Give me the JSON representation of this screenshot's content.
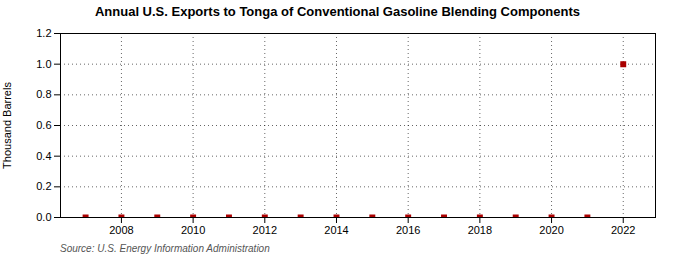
{
  "chart_data": {
    "type": "scatter",
    "title": "Annual U.S. Exports to Tonga of Conventional Gasoline Blending Components",
    "ylabel": "Thousand Barrels",
    "source": "Source: U.S. Energy Information Administration",
    "x": [
      2007,
      2008,
      2009,
      2010,
      2011,
      2012,
      2013,
      2014,
      2015,
      2016,
      2017,
      2018,
      2019,
      2020,
      2021,
      2022
    ],
    "values": [
      0,
      0,
      0,
      0,
      0,
      0,
      0,
      0,
      0,
      0,
      0,
      0,
      0,
      0,
      0,
      1.0
    ],
    "color": "#aa0000",
    "marker": "square",
    "xlim": [
      2006.3,
      2022.9
    ],
    "xticks": [
      2008,
      2010,
      2012,
      2014,
      2016,
      2018,
      2020,
      2022
    ],
    "ylim": [
      0.0,
      1.2
    ],
    "yticks": [
      {
        "value": 0.0,
        "label": "0.0"
      },
      0.2,
      0.4,
      0.6,
      0.8,
      {
        "value": 1.0,
        "label": "1.0"
      },
      1.2
    ],
    "grid": true
  }
}
